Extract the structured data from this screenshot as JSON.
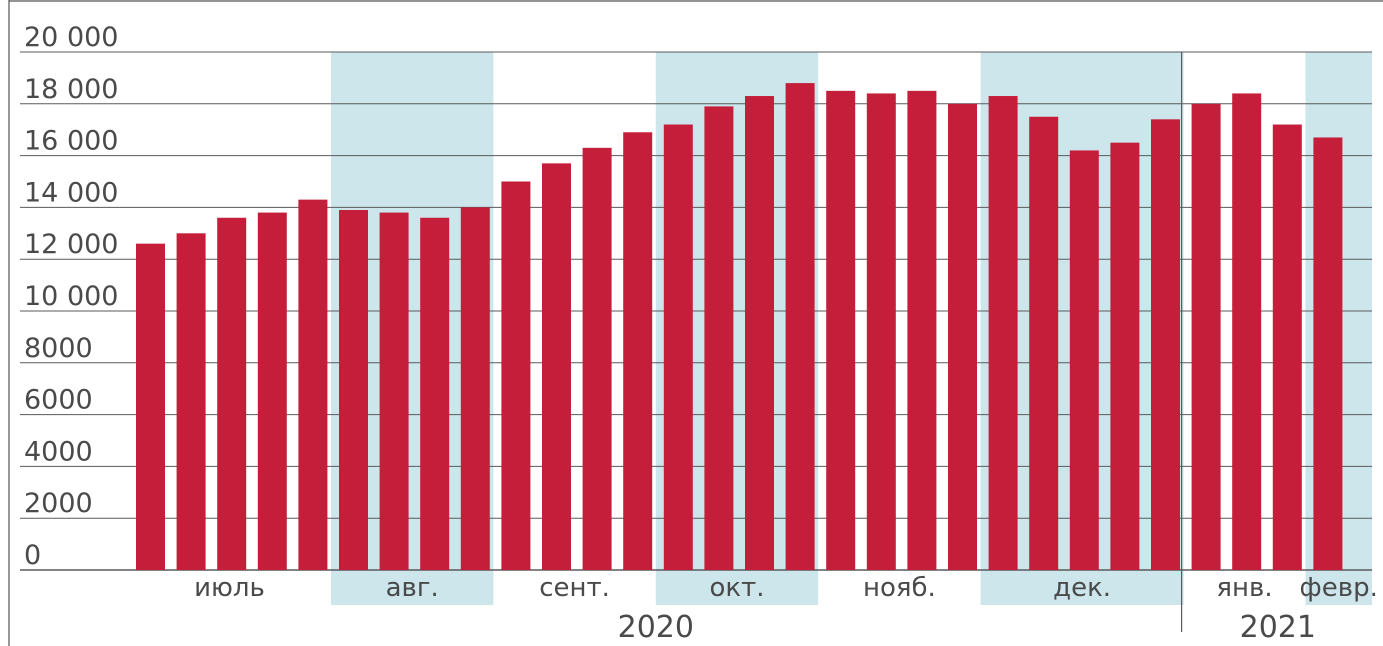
{
  "chart_data": {
    "type": "bar",
    "title": "",
    "xlabel": "",
    "ylabel": "",
    "ylim": [
      0,
      20000
    ],
    "yticks": [
      0,
      2000,
      4000,
      6000,
      8000,
      10000,
      12000,
      14000,
      16000,
      18000,
      20000
    ],
    "ytick_labels": [
      "0",
      "2000",
      "4000",
      "6000",
      "8000",
      "10 000",
      "12 000",
      "14 000",
      "16 000",
      "18 000",
      "20 000"
    ],
    "grid": true,
    "months": [
      {
        "label": "июль",
        "bars": 5,
        "shaded": false
      },
      {
        "label": "авг.",
        "bars": 4,
        "shaded": true
      },
      {
        "label": "сент.",
        "bars": 4,
        "shaded": false
      },
      {
        "label": "окт.",
        "bars": 4,
        "shaded": true
      },
      {
        "label": "нояб.",
        "bars": 4,
        "shaded": false
      },
      {
        "label": "дек.",
        "bars": 5,
        "shaded": true
      },
      {
        "label": "янв.",
        "bars": 3,
        "shaded": false
      },
      {
        "label": "февр.",
        "bars": 1,
        "shaded": true
      }
    ],
    "years": [
      {
        "label": "2020",
        "months": 6
      },
      {
        "label": "2021",
        "months": 2
      }
    ],
    "values": [
      12600,
      13000,
      13600,
      13800,
      14300,
      13900,
      13800,
      13600,
      14000,
      15000,
      15700,
      16300,
      16900,
      17200,
      17900,
      18300,
      18800,
      18500,
      18400,
      18500,
      18000,
      18300,
      17500,
      16200,
      16500,
      17400,
      18000,
      18400,
      17200,
      16700
    ],
    "colors": {
      "bar": "#c41e3a",
      "shade": "#cde6ec",
      "grid": "#5a5a5a",
      "text": "#4a4a4a"
    }
  }
}
